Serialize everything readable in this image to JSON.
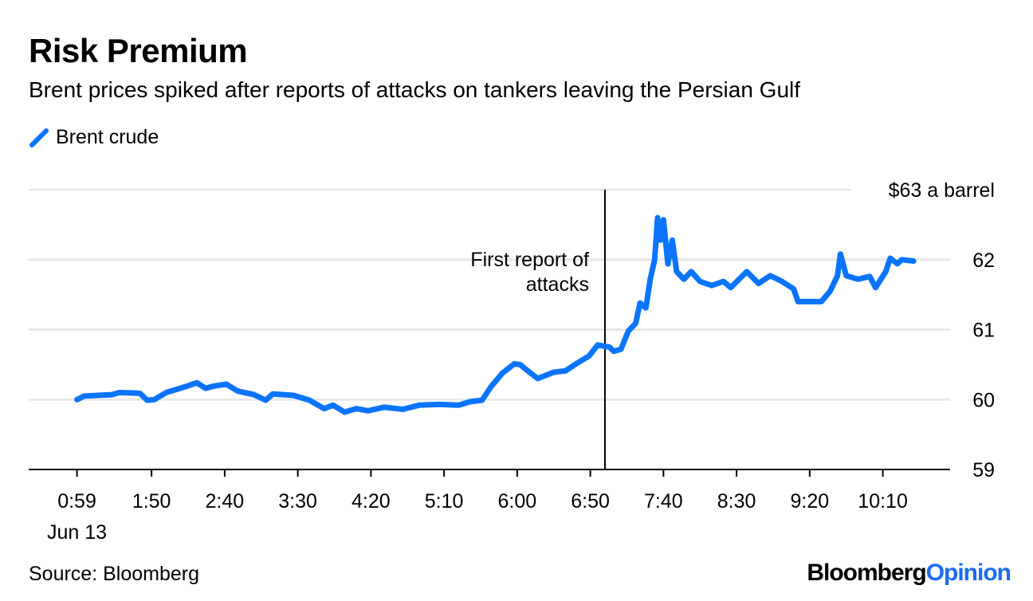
{
  "title": "Risk Premium",
  "subtitle": "Brent prices spiked after reports of attacks on tankers leaving the Persian Gulf",
  "source": "Source: Bloomberg",
  "logo": {
    "part1": "Bloomberg",
    "part2": "Opinion"
  },
  "colors": {
    "series": "#0a74ff",
    "logo_accent": "#1a6cf0",
    "grid": "#e8e8e8"
  },
  "chart_data": {
    "type": "line",
    "title": "Risk Premium",
    "xlabel": "",
    "ylabel": "$63 a barrel",
    "xlim": [
      "0:26",
      "10:56"
    ],
    "ylim": [
      59,
      63
    ],
    "grid": true,
    "legend_position": "top-left",
    "x_ticks": [
      "0:59",
      "1:50",
      "2:40",
      "3:30",
      "4:20",
      "5:10",
      "6:00",
      "6:50",
      "7:40",
      "8:30",
      "9:20",
      "10:10"
    ],
    "x_sublabel": "Jun 13",
    "y_ticks": [
      59,
      60,
      61,
      62
    ],
    "y_top_label": "$63 a barrel",
    "annotation": {
      "x": "7:00",
      "text_line1": "First report of",
      "text_line2": "attacks"
    },
    "series": [
      {
        "name": "Brent crude",
        "points": [
          [
            "0:59",
            60.0
          ],
          [
            "1:04",
            60.05
          ],
          [
            "1:23",
            60.07
          ],
          [
            "1:28",
            60.1
          ],
          [
            "1:42",
            60.09
          ],
          [
            "1:47",
            59.99
          ],
          [
            "1:52",
            60.0
          ],
          [
            "2:00",
            60.1
          ],
          [
            "2:14",
            60.19
          ],
          [
            "2:21",
            60.24
          ],
          [
            "2:27",
            60.16
          ],
          [
            "2:32",
            60.19
          ],
          [
            "2:41",
            60.22
          ],
          [
            "2:49",
            60.12
          ],
          [
            "3:00",
            60.07
          ],
          [
            "3:08",
            59.99
          ],
          [
            "3:13",
            60.08
          ],
          [
            "3:27",
            60.06
          ],
          [
            "3:38",
            59.99
          ],
          [
            "3:48",
            59.87
          ],
          [
            "3:54",
            59.92
          ],
          [
            "4:02",
            59.82
          ],
          [
            "4:10",
            59.87
          ],
          [
            "4:18",
            59.84
          ],
          [
            "4:29",
            59.89
          ],
          [
            "4:42",
            59.86
          ],
          [
            "4:53",
            59.92
          ],
          [
            "5:07",
            59.93
          ],
          [
            "5:20",
            59.92
          ],
          [
            "5:28",
            59.97
          ],
          [
            "5:36",
            59.99
          ],
          [
            "5:42",
            60.18
          ],
          [
            "5:50",
            60.38
          ],
          [
            "5:58",
            60.51
          ],
          [
            "6:02",
            60.5
          ],
          [
            "6:09",
            60.38
          ],
          [
            "6:14",
            60.3
          ],
          [
            "6:25",
            60.39
          ],
          [
            "6:33",
            60.41
          ],
          [
            "6:41",
            60.52
          ],
          [
            "6:49",
            60.62
          ],
          [
            "6:55",
            60.78
          ],
          [
            "7:03",
            60.75
          ],
          [
            "7:06",
            60.69
          ],
          [
            "7:11",
            60.72
          ],
          [
            "7:16",
            60.98
          ],
          [
            "7:21",
            61.09
          ],
          [
            "7:24",
            61.38
          ],
          [
            "7:28",
            61.31
          ],
          [
            "7:31",
            61.72
          ],
          [
            "7:34",
            62.0
          ],
          [
            "7:36",
            62.6
          ],
          [
            "7:38",
            62.28
          ],
          [
            "7:40",
            62.57
          ],
          [
            "7:43",
            61.94
          ],
          [
            "7:46",
            62.28
          ],
          [
            "7:49",
            61.83
          ],
          [
            "7:54",
            61.72
          ],
          [
            "7:59",
            61.83
          ],
          [
            "8:05",
            61.69
          ],
          [
            "8:13",
            61.63
          ],
          [
            "8:21",
            61.69
          ],
          [
            "8:26",
            61.6
          ],
          [
            "8:37",
            61.83
          ],
          [
            "8:45",
            61.66
          ],
          [
            "8:53",
            61.77
          ],
          [
            "9:01",
            61.69
          ],
          [
            "9:09",
            61.58
          ],
          [
            "9:12",
            61.4
          ],
          [
            "9:20",
            61.4
          ],
          [
            "9:28",
            61.4
          ],
          [
            "9:34",
            61.55
          ],
          [
            "9:39",
            61.77
          ],
          [
            "9:41",
            62.08
          ],
          [
            "9:45",
            61.77
          ],
          [
            "9:53",
            61.72
          ],
          [
            "10:01",
            61.76
          ],
          [
            "10:05",
            61.6
          ],
          [
            "10:12",
            61.83
          ],
          [
            "10:15",
            62.02
          ],
          [
            "10:20",
            61.94
          ],
          [
            "10:23",
            62.0
          ],
          [
            "10:31",
            61.98
          ]
        ]
      }
    ]
  }
}
